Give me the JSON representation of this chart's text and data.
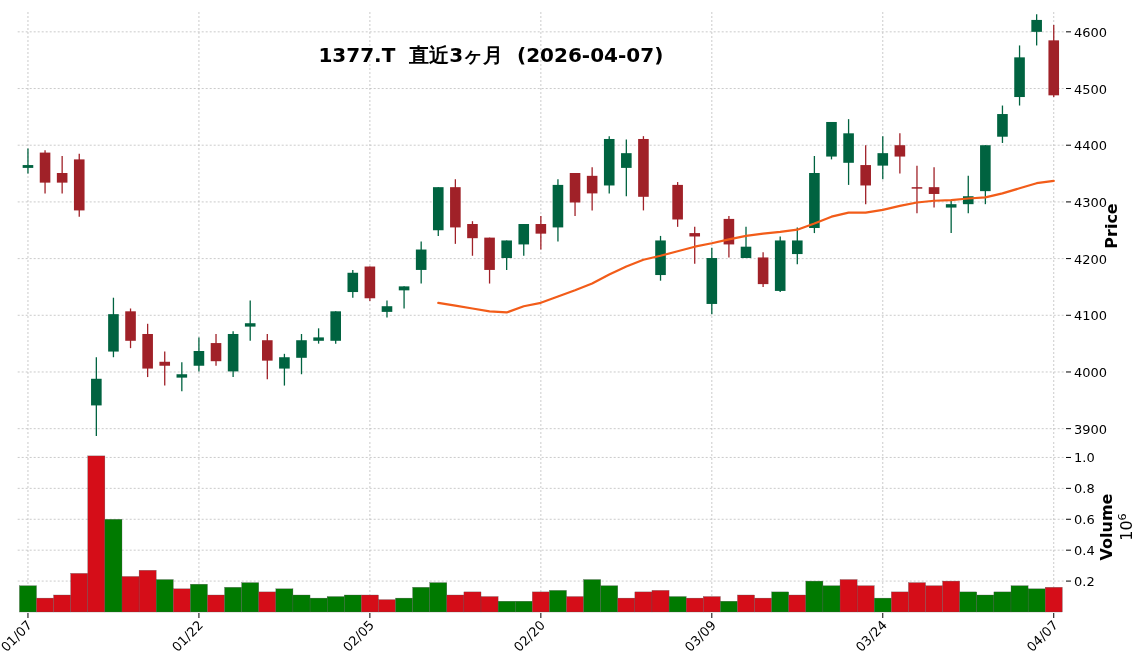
{
  "chart_data": [
    {
      "type": "candlestick",
      "title": "1377.T  直近3ヶ月  (2026-04-07)",
      "ylabel": "Price",
      "grid": true,
      "tick_labels": "y",
      "ylim": [
        3880,
        4635
      ],
      "yticks": [
        3900,
        4000,
        4100,
        4200,
        4300,
        4400,
        4500,
        4600
      ],
      "ohlc": [
        [
          4360,
          4394,
          4350,
          4365
        ],
        [
          4387,
          4391,
          4315,
          4334
        ],
        [
          4351,
          4381,
          4315,
          4334
        ],
        [
          4375,
          4385,
          4274,
          4285
        ],
        [
          3941,
          4026,
          3887,
          3988
        ],
        [
          4036,
          4131,
          4026,
          4102
        ],
        [
          4107,
          4112,
          4042,
          4055
        ],
        [
          4067,
          4085,
          3991,
          4006
        ],
        [
          4018,
          4036,
          3976,
          4011
        ],
        [
          3990,
          4017,
          3966,
          3996
        ],
        [
          4011,
          4061,
          4001,
          4037
        ],
        [
          4051,
          4067,
          4011,
          4019
        ],
        [
          4001,
          4072,
          3991,
          4067
        ],
        [
          4080,
          4126,
          4055,
          4086
        ],
        [
          4056,
          4067,
          3987,
          4020
        ],
        [
          4006,
          4032,
          3976,
          4026
        ],
        [
          4025,
          4067,
          3996,
          4056
        ],
        [
          4055,
          4077,
          4050,
          4061
        ],
        [
          4055,
          4107,
          4050,
          4107
        ],
        [
          4141,
          4180,
          4131,
          4175
        ],
        [
          4186,
          4186,
          4125,
          4130
        ],
        [
          4106,
          4126,
          4096,
          4116
        ],
        [
          4144,
          4151,
          4112,
          4151
        ],
        [
          4180,
          4230,
          4156,
          4216
        ],
        [
          4250,
          4326,
          4240,
          4326
        ],
        [
          4326,
          4340,
          4226,
          4255
        ],
        [
          4261,
          4266,
          4205,
          4236
        ],
        [
          4237,
          4237,
          4156,
          4180
        ],
        [
          4201,
          4232,
          4180,
          4232
        ],
        [
          4225,
          4261,
          4205,
          4261
        ],
        [
          4261,
          4275,
          4216,
          4244
        ],
        [
          4255,
          4340,
          4230,
          4330
        ],
        [
          4351,
          4351,
          4275,
          4299
        ],
        [
          4346,
          4361,
          4285,
          4315
        ],
        [
          4329,
          4416,
          4315,
          4411
        ],
        [
          4360,
          4410,
          4310,
          4386
        ],
        [
          4411,
          4416,
          4285,
          4309
        ],
        [
          4171,
          4240,
          4161,
          4232
        ],
        [
          4330,
          4335,
          4256,
          4269
        ],
        [
          4245,
          4256,
          4191,
          4239
        ],
        [
          4120,
          4219,
          4102,
          4201
        ],
        [
          4270,
          4275,
          4202,
          4225
        ],
        [
          4201,
          4256,
          4201,
          4221
        ],
        [
          4202,
          4211,
          4150,
          4155
        ],
        [
          4143,
          4239,
          4141,
          4232
        ],
        [
          4208,
          4255,
          4190,
          4232
        ],
        [
          4254,
          4381,
          4245,
          4351
        ],
        [
          4380,
          4441,
          4375,
          4441
        ],
        [
          4369,
          4446,
          4330,
          4421
        ],
        [
          4365,
          4400,
          4296,
          4329
        ],
        [
          4364,
          4416,
          4340,
          4386
        ],
        [
          4400,
          4421,
          4350,
          4380
        ],
        [
          4326,
          4364,
          4280,
          4325
        ],
        [
          4326,
          4361,
          4290,
          4314
        ],
        [
          4290,
          4304,
          4245,
          4296
        ],
        [
          4296,
          4346,
          4280,
          4310
        ],
        [
          4319,
          4400,
          4296,
          4400
        ],
        [
          4415,
          4470,
          4404,
          4455
        ],
        [
          4485,
          4576,
          4470,
          4555
        ],
        [
          4600,
          4631,
          4576,
          4621
        ],
        [
          4585,
          4612,
          4485,
          4488
        ]
      ],
      "colors": [
        "#006340",
        "#a02128",
        "#a02128",
        "#a02128",
        "#006340",
        "#006340",
        "#a02128",
        "#a02128",
        "#a02128",
        "#006340",
        "#006340",
        "#a02128",
        "#006340",
        "#006340",
        "#a02128",
        "#006340",
        "#006340",
        "#006340",
        "#006340",
        "#006340",
        "#a02128",
        "#006340",
        "#006340",
        "#006340",
        "#006340",
        "#a02128",
        "#a02128",
        "#a02128",
        "#006340",
        "#006340",
        "#a02128",
        "#006340",
        "#a02128",
        "#a02128",
        "#006340",
        "#006340",
        "#a02128",
        "#006340",
        "#a02128",
        "#a02128",
        "#006340",
        "#a02128",
        "#006340",
        "#a02128",
        "#006340",
        "#006340",
        "#006340",
        "#006340",
        "#006340",
        "#a02128",
        "#006340",
        "#a02128",
        "#a02128",
        "#a02128",
        "#006340",
        "#006340",
        "#006340",
        "#006340",
        "#006340",
        "#006340",
        "#a02128"
      ],
      "series": [
        {
          "type": "line",
          "color": "#f25c19",
          "values": [
            null,
            null,
            null,
            null,
            null,
            null,
            null,
            null,
            null,
            null,
            null,
            null,
            null,
            null,
            null,
            null,
            null,
            null,
            null,
            null,
            null,
            null,
            null,
            null,
            4122,
            4117,
            4112,
            4107,
            4105,
            4116,
            4122,
            4133,
            4144,
            4156,
            4172,
            4186,
            4198,
            4205,
            4213,
            4221,
            4227,
            4234,
            4240,
            4244,
            4247,
            4251,
            4262,
            4274,
            4281,
            4281,
            4286,
            4293,
            4299,
            4302,
            4303,
            4306,
            4308,
            4315,
            4324,
            4333,
            4337
          ]
        }
      ]
    },
    {
      "type": "bar",
      "ylabel": "Volume",
      "annotations": [
        "10$^{6}$"
      ],
      "grid": true,
      "categories": [
        "01/07",
        null,
        null,
        null,
        null,
        null,
        null,
        null,
        null,
        null,
        "01/22",
        null,
        null,
        null,
        null,
        null,
        null,
        null,
        null,
        null,
        "02/05",
        null,
        null,
        null,
        null,
        null,
        null,
        null,
        null,
        null,
        "02/20",
        null,
        null,
        null,
        null,
        null,
        null,
        null,
        null,
        null,
        "03/09",
        null,
        null,
        null,
        null,
        null,
        null,
        null,
        null,
        null,
        "03/24",
        null,
        null,
        null,
        null,
        null,
        null,
        null,
        null,
        null,
        "04/07"
      ],
      "ylim": [
        0,
        1.1
      ],
      "yticks": [
        {
          "value": 0.2,
          "label": "0.2"
        },
        {
          "value": 0.4,
          "label": "0.4"
        },
        {
          "value": 0.6,
          "label": "0.6"
        },
        {
          "value": 0.8,
          "label": "0.8"
        },
        {
          "value": 1,
          "label": "1.0"
        }
      ],
      "values": [
        0.17,
        0.09,
        0.11,
        0.25,
        1.01,
        0.6,
        0.23,
        0.27,
        0.21,
        0.15,
        0.18,
        0.11,
        0.16,
        0.19,
        0.13,
        0.15,
        0.11,
        0.09,
        0.1,
        0.11,
        0.11,
        0.08,
        0.09,
        0.16,
        0.19,
        0.11,
        0.13,
        0.1,
        0.07,
        0.07,
        0.13,
        0.14,
        0.1,
        0.21,
        0.17,
        0.09,
        0.13,
        0.14,
        0.1,
        0.09,
        0.1,
        0.07,
        0.11,
        0.09,
        0.13,
        0.11,
        0.2,
        0.17,
        0.21,
        0.17,
        0.09,
        0.13,
        0.19,
        0.17,
        0.2,
        0.13,
        0.11,
        0.13,
        0.17,
        0.15,
        0.16
      ],
      "colors": [
        "#007a00",
        "#d50d18",
        "#d50d18",
        "#d50d18",
        "#d50d18",
        "#007a00",
        "#d50d18",
        "#d50d18",
        "#007a00",
        "#d50d18",
        "#007a00",
        "#d50d18",
        "#007a00",
        "#007a00",
        "#d50d18",
        "#007a00",
        "#007a00",
        "#007a00",
        "#007a00",
        "#007a00",
        "#d50d18",
        "#d50d18",
        "#007a00",
        "#007a00",
        "#007a00",
        "#d50d18",
        "#d50d18",
        "#d50d18",
        "#007a00",
        "#007a00",
        "#d50d18",
        "#007a00",
        "#d50d18",
        "#007a00",
        "#007a00",
        "#d50d18",
        "#d50d18",
        "#d50d18",
        "#007a00",
        "#d50d18",
        "#d50d18",
        "#007a00",
        "#d50d18",
        "#d50d18",
        "#007a00",
        "#d50d18",
        "#007a00",
        "#007a00",
        "#d50d18",
        "#d50d18",
        "#007a00",
        "#d50d18",
        "#d50d18",
        "#d50d18",
        "#d50d18",
        "#007a00",
        "#007a00",
        "#007a00",
        "#007a00",
        "#007a00",
        "#d50d18"
      ]
    }
  ]
}
